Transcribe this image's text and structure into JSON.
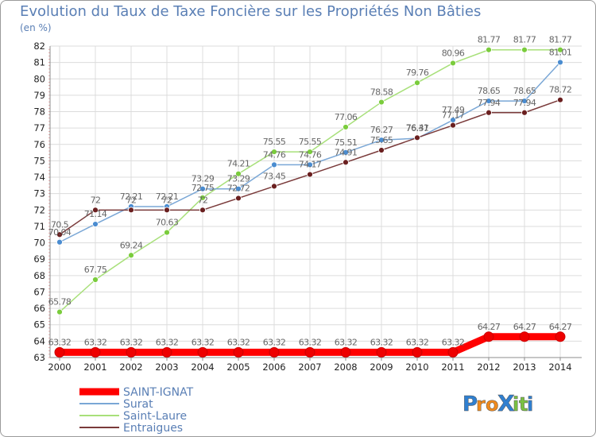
{
  "chart_data": {
    "type": "line",
    "title": "Evolution du Taux de Taxe Foncière sur les Propriétés Non Bâties",
    "unit_label": "(en %)",
    "xlabel": "",
    "ylabel": "(en %)",
    "categories": [
      "2000",
      "2001",
      "2002",
      "2003",
      "2004",
      "2005",
      "2006",
      "2007",
      "2008",
      "2009",
      "2010",
      "2011",
      "2012",
      "2013",
      "2014"
    ],
    "ylim": [
      63,
      82
    ],
    "yticks": [
      63,
      64,
      65,
      66,
      67,
      68,
      69,
      70,
      71,
      72,
      73,
      74,
      75,
      76,
      77,
      78,
      79,
      80,
      81,
      82
    ],
    "grid": true,
    "legend_position": "bottom-left",
    "series": [
      {
        "name": "SAINT-IGNAT",
        "color": "#ff0000",
        "marker_color": "#ee0000",
        "width": "thick",
        "values": [
          63.32,
          63.32,
          63.32,
          63.32,
          63.32,
          63.32,
          63.32,
          63.32,
          63.32,
          63.32,
          63.32,
          63.32,
          64.27,
          64.27,
          64.27
        ],
        "labels": [
          "63.32",
          "63.32",
          "63.32",
          "63.32",
          "63.32",
          "63.32",
          "63.32",
          "63.32",
          "63.32",
          "63.32",
          "63.32",
          "63.32",
          "64.27",
          "64.27",
          "64.27"
        ]
      },
      {
        "name": "Surat",
        "color": "#7aa7d6",
        "marker_color": "#4a8cd0",
        "width": "thin",
        "values": [
          70.04,
          71.14,
          72.21,
          72.21,
          73.29,
          73.29,
          74.76,
          74.76,
          75.51,
          76.27,
          76.37,
          77.49,
          78.65,
          78.65,
          81.01
        ],
        "labels": [
          "70.04",
          "71.14",
          "72.21",
          "72.21",
          "73.29",
          "73.29",
          "74.76",
          "74.76",
          "75.51",
          "76.27",
          "76.37",
          "77.49",
          "78.65",
          "78.65",
          "81.01"
        ]
      },
      {
        "name": "Saint-Laure",
        "color": "#a8e07a",
        "marker_color": "#7acc3c",
        "width": "thin",
        "values": [
          65.78,
          67.75,
          69.24,
          70.63,
          72.75,
          74.21,
          75.55,
          75.55,
          77.06,
          78.58,
          79.76,
          80.96,
          81.77,
          81.77,
          81.77
        ],
        "labels": [
          "65.78",
          "67.75",
          "69.24",
          "70.63",
          "72.75",
          "74.21",
          "75.55",
          "75.55",
          "77.06",
          "78.58",
          "79.76",
          "80.96",
          "81.77",
          "81.77",
          "81.77"
        ]
      },
      {
        "name": "Entraigues",
        "color": "#7a3a3a",
        "marker_color": "#6a1f1f",
        "width": "thin",
        "values": [
          70.5,
          72,
          72,
          72,
          72,
          72.72,
          73.45,
          74.17,
          74.91,
          75.65,
          76.41,
          77.17,
          77.94,
          77.94,
          78.72
        ],
        "labels": [
          "70.5",
          "72",
          "72",
          "72",
          "72",
          "72.72",
          "73.45",
          "74.17",
          "74.91",
          "75.65",
          "76.41",
          "77.17",
          "77.94",
          "77.94",
          "78.72"
        ]
      }
    ]
  },
  "logo": {
    "text": "ProXiti",
    "letters": [
      {
        "ch": "P",
        "color": "#2f7fd0"
      },
      {
        "ch": "r",
        "color": "#f08a1c"
      },
      {
        "ch": "o",
        "color": "#f08a1c"
      },
      {
        "ch": "X",
        "color": "#2f7fd0"
      },
      {
        "ch": "i",
        "color": "#7ac141"
      },
      {
        "ch": "t",
        "color": "#7ac141"
      },
      {
        "ch": "i",
        "color": "#2f7fd0"
      }
    ]
  }
}
